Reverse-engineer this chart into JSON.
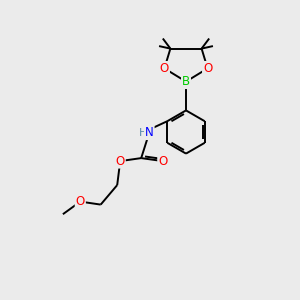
{
  "bg_color": "#ebebeb",
  "bond_color": "#000000",
  "atom_colors": {
    "O": "#ff0000",
    "B": "#00cc00",
    "N": "#0000ff",
    "H": "#5588aa",
    "C": "#000000"
  },
  "bond_width": 1.4,
  "font_size_atom": 8.5,
  "figsize": [
    3.0,
    3.0
  ],
  "dpi": 100
}
